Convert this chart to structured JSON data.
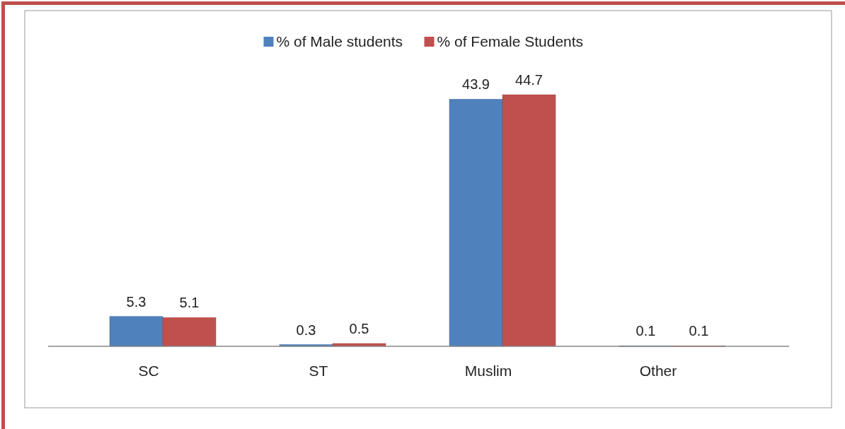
{
  "chart_data": {
    "type": "bar",
    "categories": [
      "SC",
      "ST",
      "Muslim",
      "Other"
    ],
    "series": [
      {
        "name": "% of Male students",
        "color": "#4f81bd",
        "values": [
          5.3,
          0.3,
          43.9,
          0.1
        ]
      },
      {
        "name": "% of Female Students",
        "color": "#c0504d",
        "values": [
          5.1,
          0.5,
          44.7,
          0.1
        ]
      }
    ],
    "data_labels": true,
    "legend": "top"
  }
}
